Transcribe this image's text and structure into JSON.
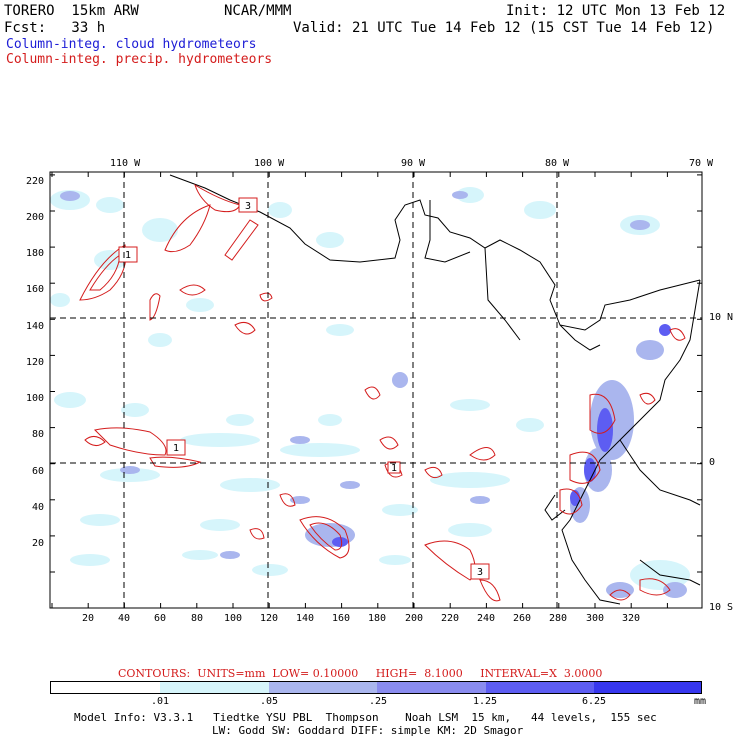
{
  "header": {
    "model": "TORERO  15km ARW",
    "org": "NCAR/MMM",
    "init": "Init: 12 UTC Mon 13 Feb 12",
    "fcst": "Fcst:   33 h",
    "valid": "Valid: 21 UTC Tue 14 Feb 12 (15 CST Tue 14 Feb 12)",
    "field1": "Column-integ. cloud hydrometeors",
    "field2": "Column-integ. precip. hydrometeors"
  },
  "colors": {
    "field1": "#1c1cd6",
    "field2": "#d41c1c",
    "coast": "#000000",
    "bin1": "#ffffff",
    "bin2": "#d6f5fb",
    "bin3": "#aab6ee",
    "bin4": "#8a8cef",
    "bin5": "#5d5df2",
    "bin6": "#3737ee"
  },
  "axes": {
    "lon_labels": [
      "110 W",
      "100 W",
      "90 W",
      "80 W",
      "70 W"
    ],
    "lat_labels": [
      "10 N",
      "0",
      "10 S"
    ],
    "x_ticks": [
      "20",
      "40",
      "60",
      "80",
      "100",
      "120",
      "140",
      "160",
      "180",
      "200",
      "220",
      "240",
      "260",
      "280",
      "300",
      "320"
    ],
    "y_ticks": [
      "220",
      "200",
      "180",
      "160",
      "140",
      "120",
      "100",
      "80",
      "60",
      "40",
      "20"
    ]
  },
  "contour_labels": [
    "1",
    "1",
    "3",
    "3",
    "1"
  ],
  "contours_info": "CONTOURS:  UNITS=mm  LOW= 0.10000     HIGH=  8.1000     INTERVAL=X  3.0000",
  "colorbar": {
    "labels": [
      ".01",
      ".05",
      ".25",
      "1.25",
      "6.25"
    ],
    "unit": "mm"
  },
  "footer": {
    "line1": "Model Info: V3.3.1   Tiedtke YSU PBL  Thompson    Noah LSM  15 km,   44 levels,  155 sec",
    "line2": "LW: Godd SW: Goddard DIFF: simple KM: 2D Smagor"
  }
}
